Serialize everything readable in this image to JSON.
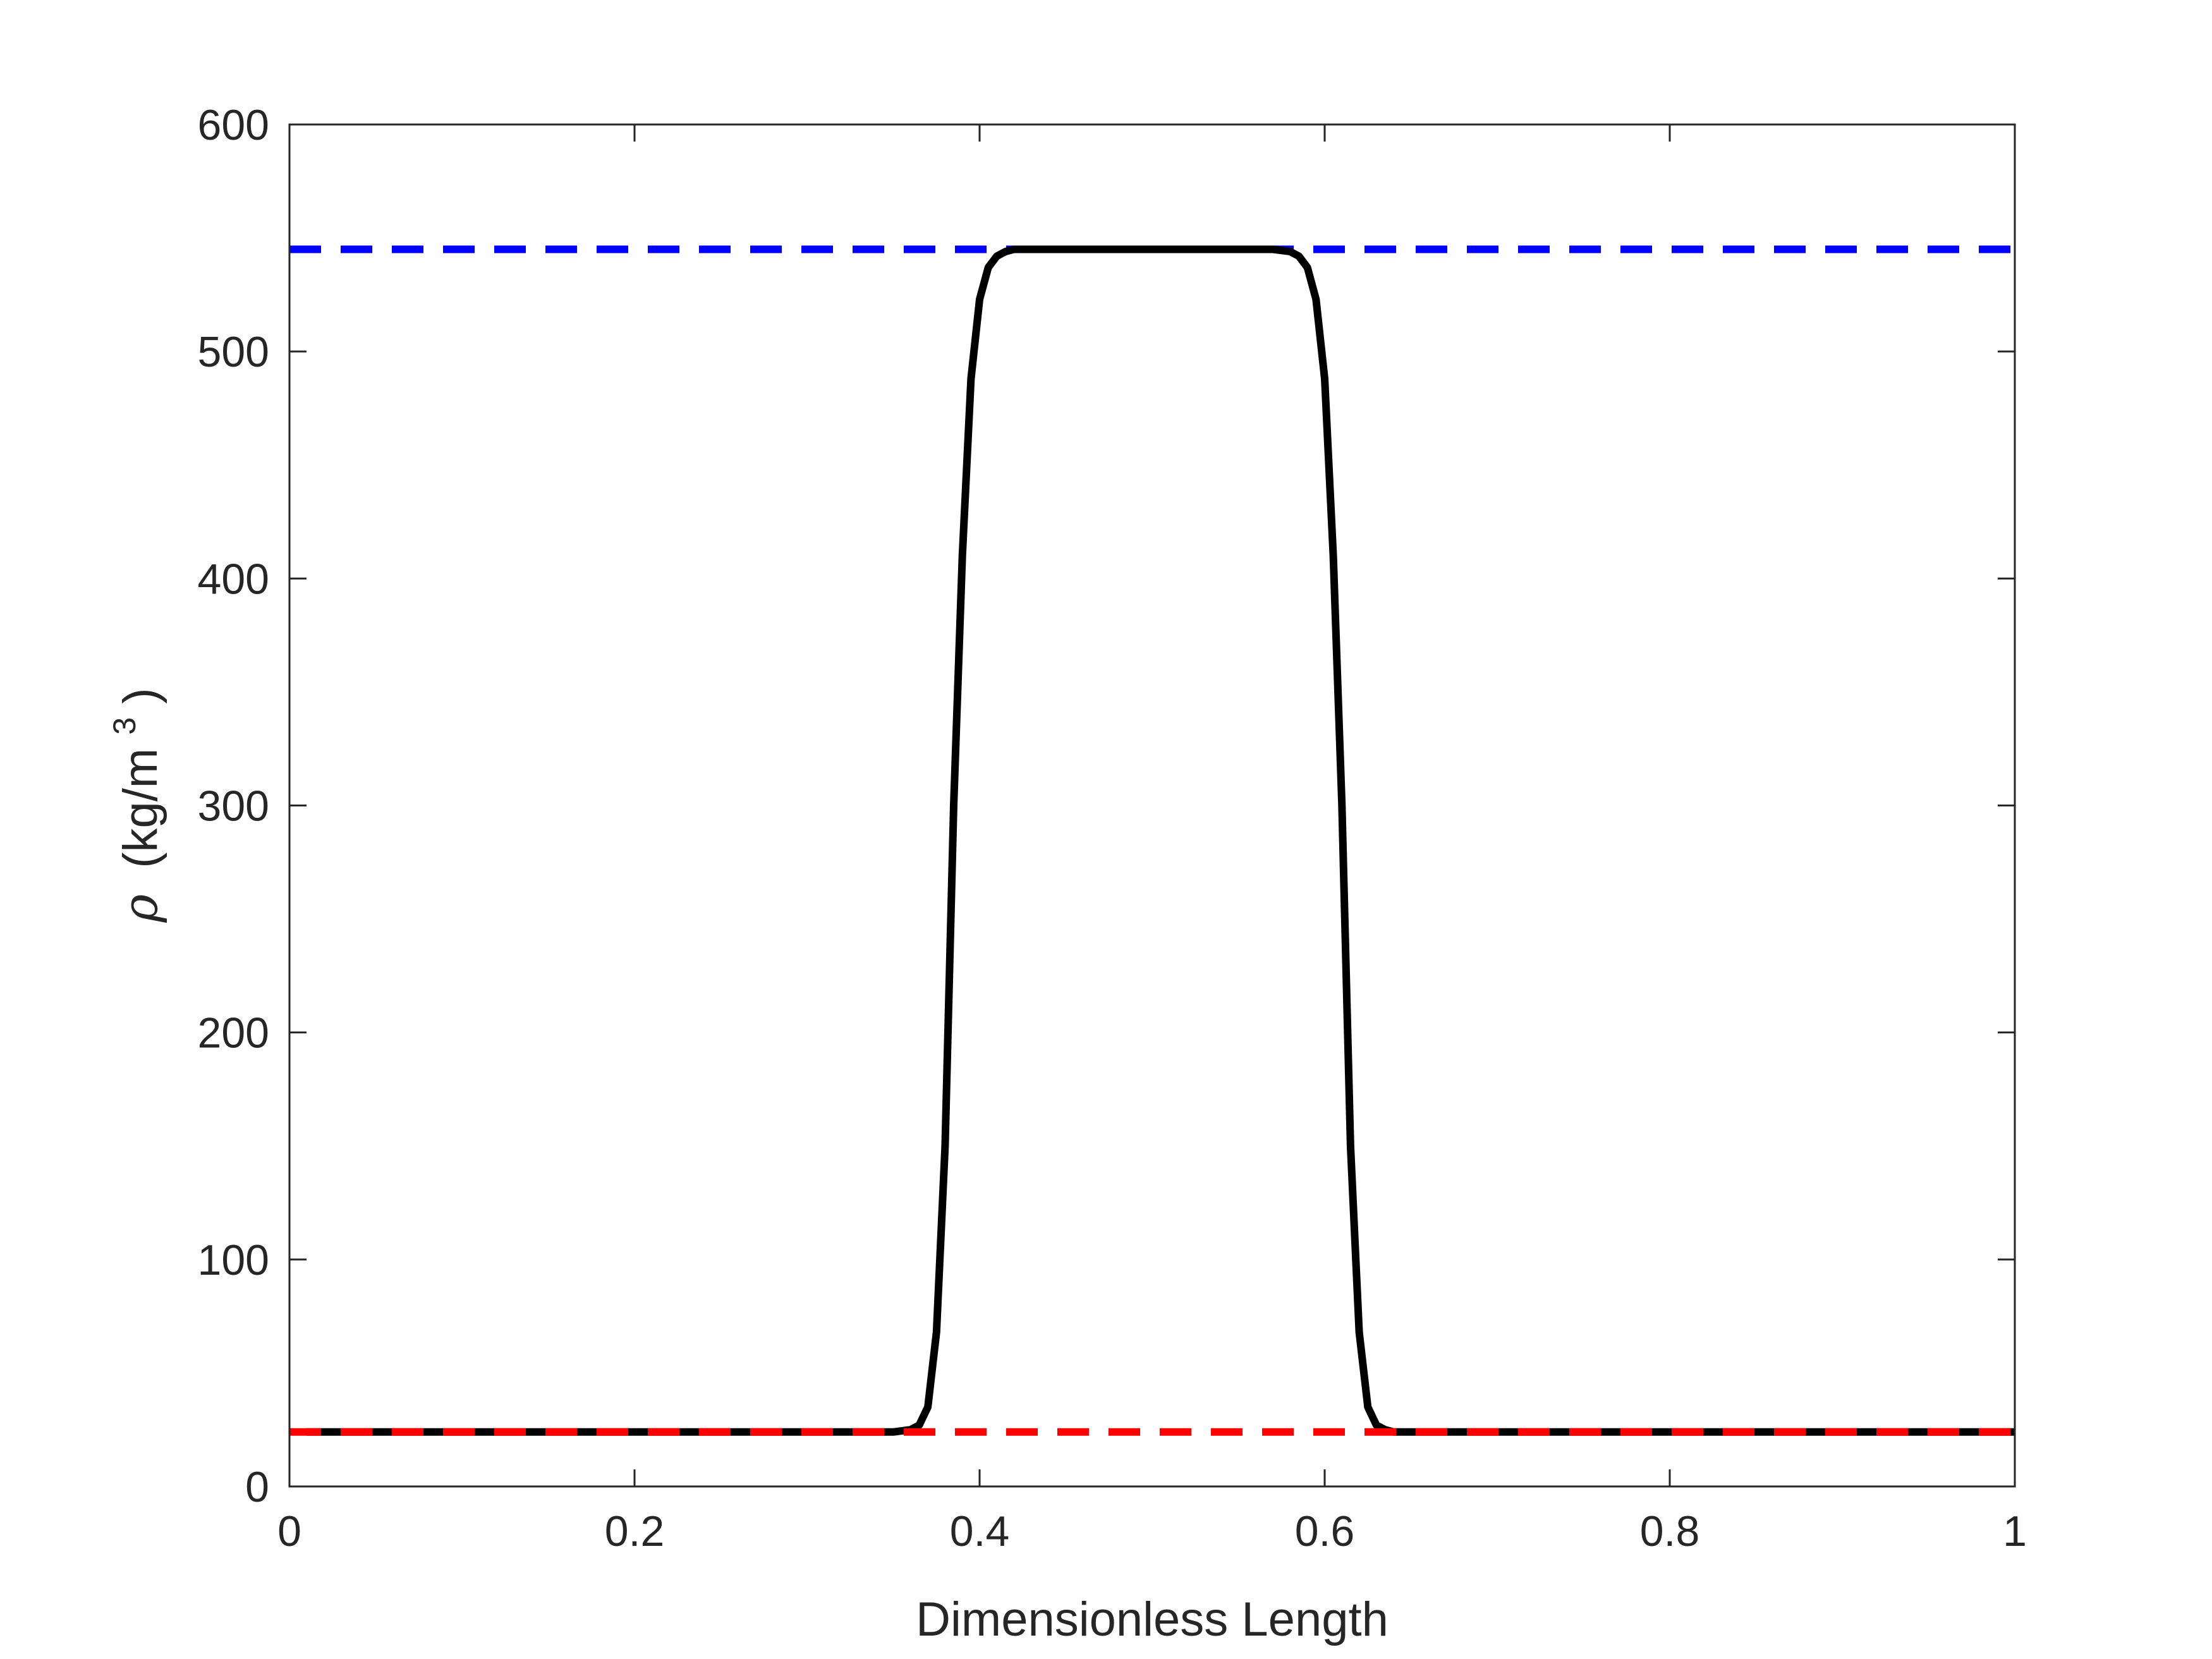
{
  "chart_data": {
    "type": "line",
    "xlabel": "Dimensionless Length",
    "ylabel": {
      "symbol": "ρ",
      "unit": "(kg/m",
      "sup": "3",
      "close": ")"
    },
    "xlim": [
      0,
      1
    ],
    "ylim": [
      0,
      600
    ],
    "xticks": [
      {
        "value": 0,
        "label": "0"
      },
      {
        "value": 0.2,
        "label": "0.2"
      },
      {
        "value": 0.4,
        "label": "0.4"
      },
      {
        "value": 0.6,
        "label": "0.6"
      },
      {
        "value": 0.8,
        "label": "0.8"
      },
      {
        "value": 1,
        "label": "1"
      }
    ],
    "yticks": [
      {
        "value": 0,
        "label": "0"
      },
      {
        "value": 100,
        "label": "100"
      },
      {
        "value": 200,
        "label": "200"
      },
      {
        "value": 300,
        "label": "300"
      },
      {
        "value": 400,
        "label": "400"
      },
      {
        "value": 500,
        "label": "500"
      },
      {
        "value": 600,
        "label": "600"
      }
    ],
    "grid": false,
    "box": true,
    "series": [
      {
        "color": "#0000ff",
        "style": "dashed",
        "x": [
          0,
          1
        ],
        "y": [
          545,
          545
        ]
      },
      {
        "color": "#000000",
        "style": "solid",
        "x": [
          0.01,
          0.05,
          0.1,
          0.2,
          0.3,
          0.35,
          0.36,
          0.365,
          0.37,
          0.375,
          0.38,
          0.385,
          0.39,
          0.395,
          0.4,
          0.405,
          0.41,
          0.415,
          0.42,
          0.43,
          0.44,
          0.5,
          0.56,
          0.57,
          0.58,
          0.585,
          0.59,
          0.595,
          0.6,
          0.605,
          0.61,
          0.615,
          0.62,
          0.625,
          0.63,
          0.635,
          0.64,
          0.65,
          0.7,
          0.8,
          0.9,
          1.0
        ],
        "y": [
          24,
          24,
          24,
          24,
          24,
          24,
          25,
          27,
          35,
          68,
          150,
          300,
          410,
          488,
          523,
          537,
          542,
          544,
          545,
          545,
          545,
          545,
          545,
          545,
          544,
          542,
          537,
          523,
          488,
          410,
          300,
          150,
          68,
          35,
          27,
          25,
          24,
          24,
          24,
          24,
          24,
          24
        ]
      },
      {
        "color": "#ff0000",
        "style": "dashed",
        "x": [
          0,
          1
        ],
        "y": [
          24,
          24
        ]
      }
    ]
  }
}
